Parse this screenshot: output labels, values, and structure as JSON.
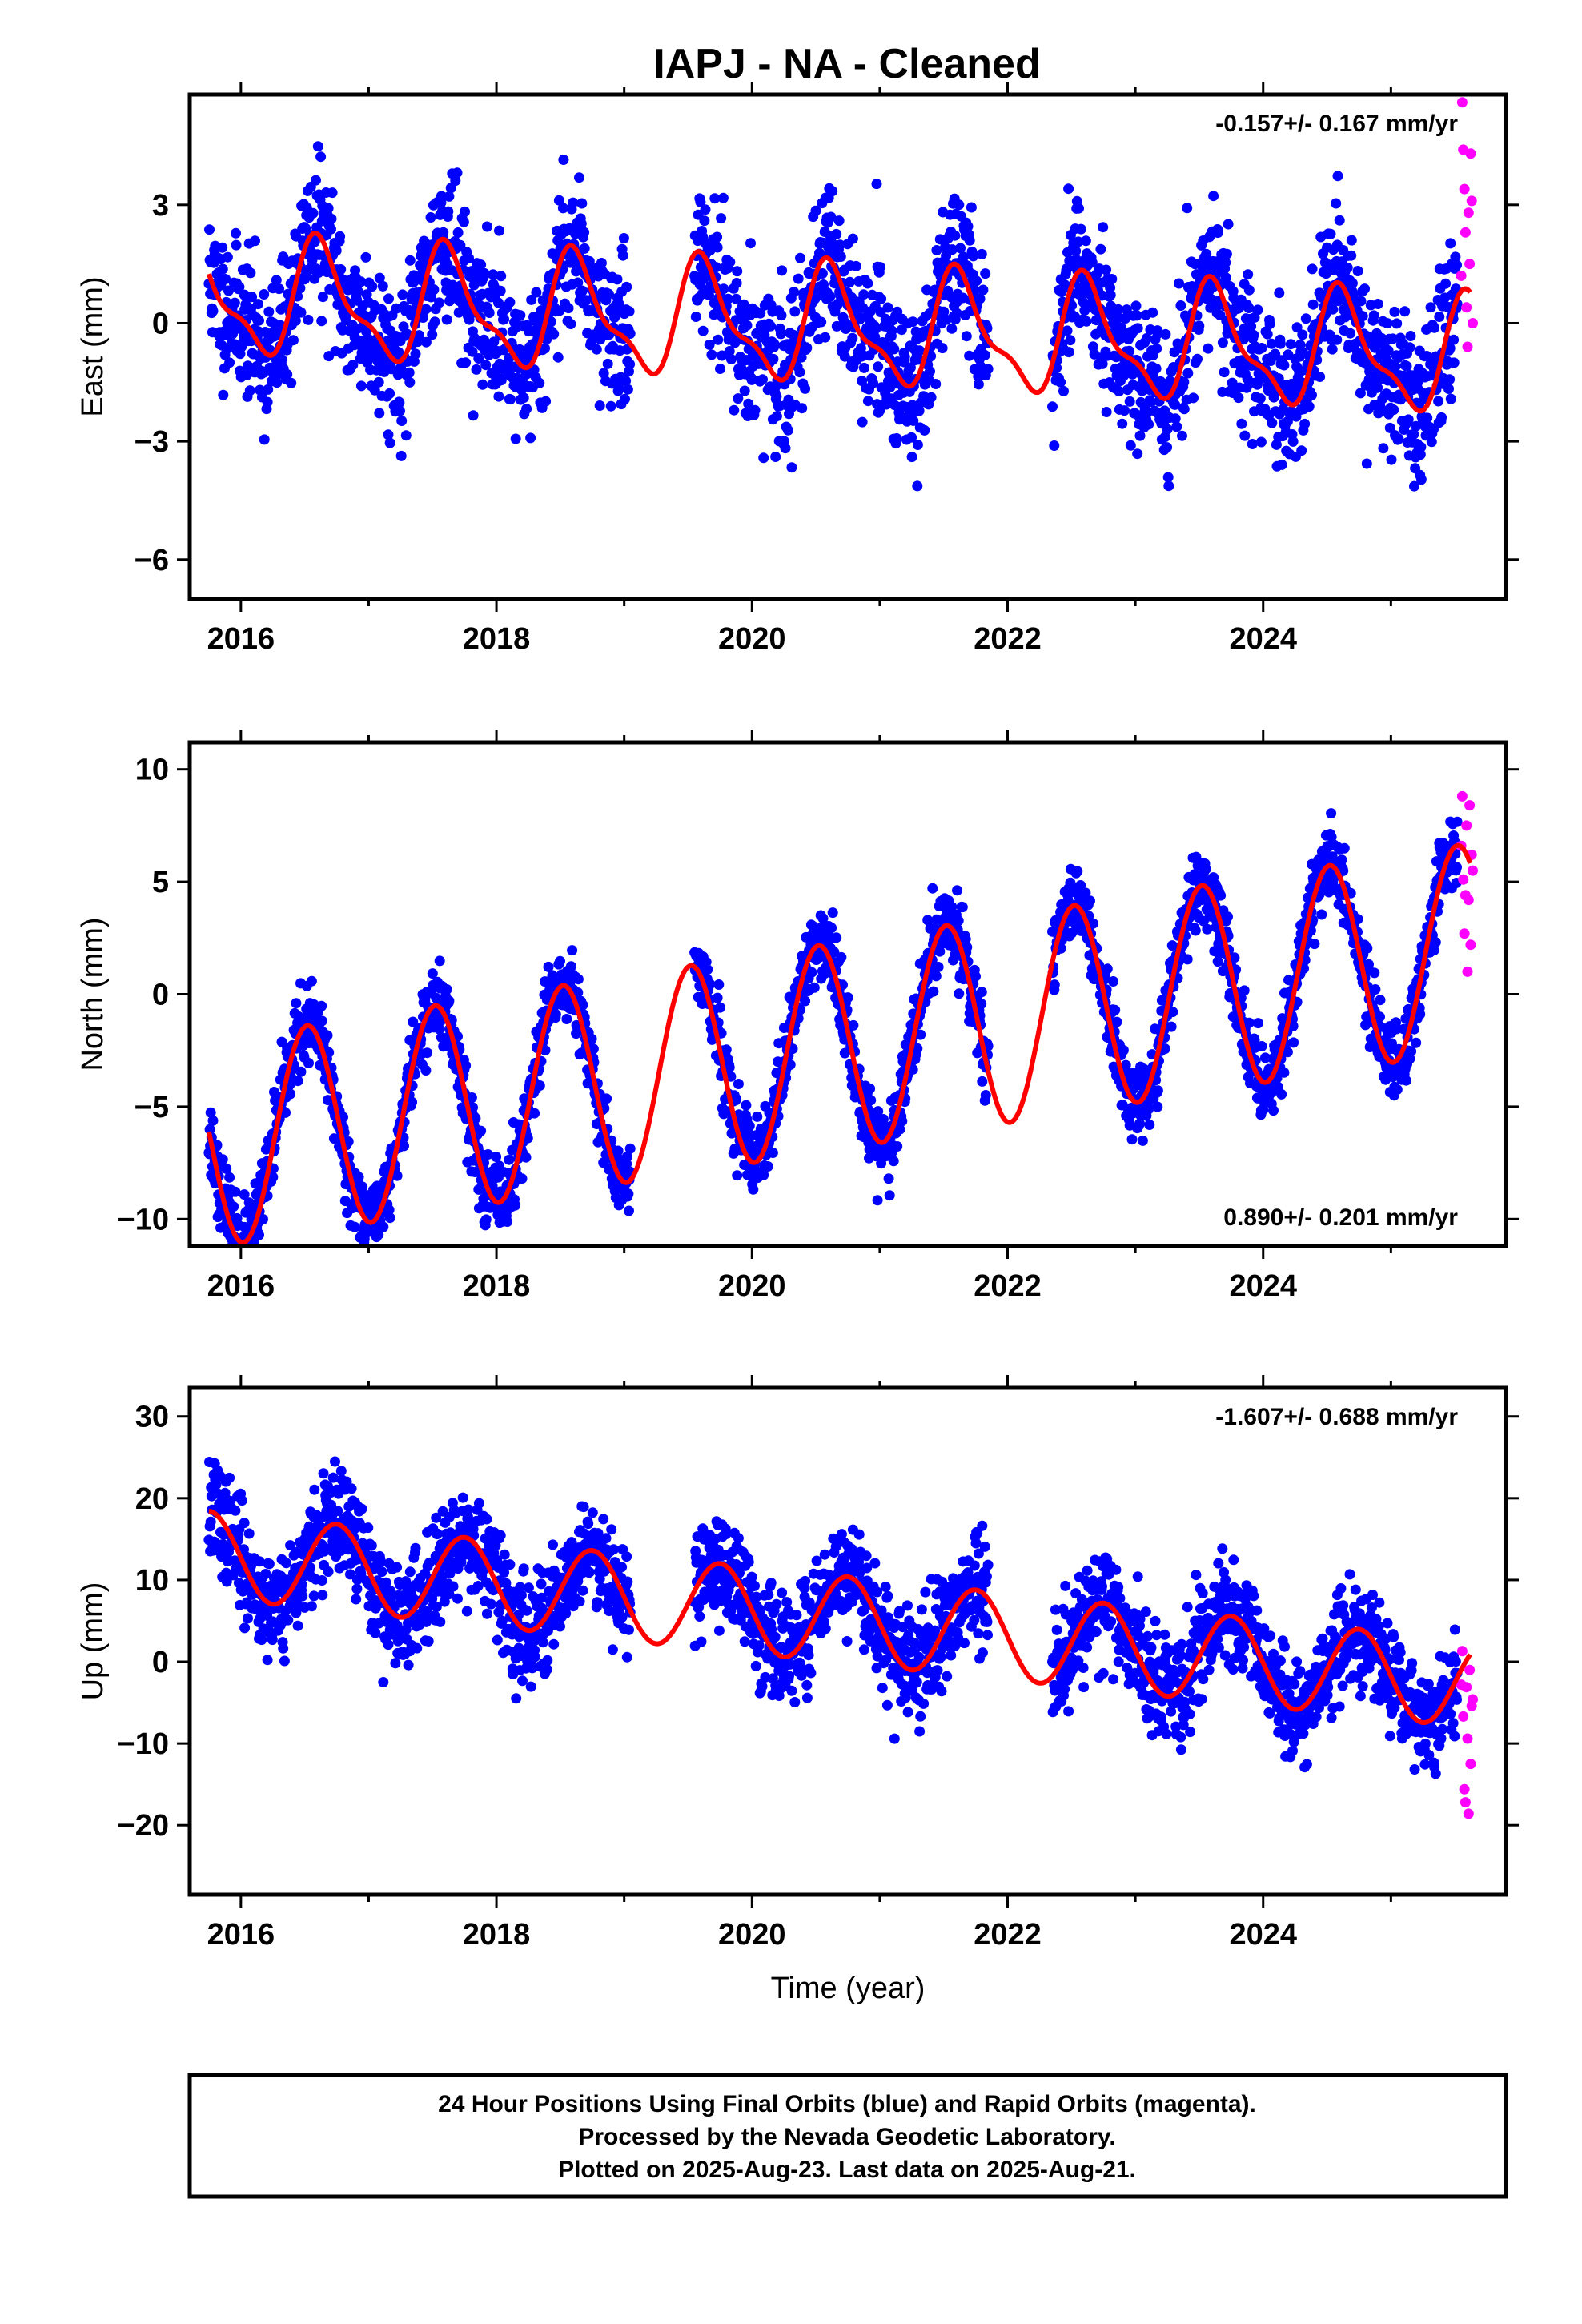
{
  "chart_data": {
    "title": "IAPJ  - NA - Cleaned",
    "type": "scatter",
    "xlabel": "Time (year)",
    "xlim": [
      2015.6,
      2025.9
    ],
    "xticks": [
      2016,
      2018,
      2020,
      2022,
      2024
    ],
    "legend": "bottom box",
    "colors": {
      "final": "#0000ff",
      "rapid": "#ff00ff",
      "model": "#ff0000"
    },
    "panels": [
      {
        "id": "east",
        "ylabel": "East (mm)",
        "ylim": [
          -7.0,
          5.8
        ],
        "yticks": [
          3,
          0,
          -3,
          -6
        ],
        "ytick_labels": [
          "3",
          "0",
          "−3",
          "−6"
        ],
        "rate": "-0.157+/- 0.167 mm/yr",
        "rate_pos": "top-right",
        "velocity": -0.157,
        "offset": 0.0,
        "annual_amp": 1.35,
        "annual_phase": 2016.63,
        "semi_amp": 0.5,
        "semi_phase": 2016.55,
        "noise": 0.9,
        "seed": 11,
        "rapid": [
          1.2,
          5.6,
          4.4,
          3.4,
          2.3,
          0.4,
          -0.6,
          2.8,
          1.5,
          4.3,
          3.1,
          0.0
        ]
      },
      {
        "id": "north",
        "ylabel": "North (mm)",
        "ylim": [
          -11.2,
          11.2
        ],
        "yticks": [
          10,
          5,
          0,
          -5,
          -10
        ],
        "ytick_labels": [
          "10",
          "5",
          "0",
          "−5",
          "−10"
        ],
        "rate": "0.890+/- 0.201 mm/yr",
        "rate_pos": "bottom-right",
        "velocity": 0.89,
        "offset": -2.9,
        "annual_amp": 4.6,
        "annual_phase": 2016.52,
        "semi_amp": 0.0,
        "semi_phase": 2016.3,
        "noise": 0.85,
        "seed": 23,
        "rapid": [
          6.6,
          8.8,
          5.1,
          2.7,
          4.4,
          7.5,
          1.0,
          4.2,
          8.4,
          2.2,
          6.2,
          5.5
        ]
      },
      {
        "id": "up",
        "ylabel": "Up (mm)",
        "ylim": [
          -28.5,
          33.5
        ],
        "yticks": [
          30,
          20,
          10,
          0,
          -10,
          -20
        ],
        "ytick_labels": [
          "30",
          "20",
          "10",
          "0",
          "−10",
          "−20"
        ],
        "rate": "-1.607+/- 0.688 mm/yr",
        "rate_pos": "top-right",
        "velocity": -1.607,
        "offset": 6.3,
        "annual_amp": 5.3,
        "annual_phase": 2016.75,
        "semi_amp": 0.0,
        "semi_phase": 2016.3,
        "noise": 3.2,
        "seed": 37,
        "rapid": [
          -2.8,
          1.3,
          -6.7,
          -15.6,
          -17.2,
          -3.1,
          -9.4,
          -18.6,
          -1.0,
          -12.5,
          -5.4,
          -4.6
        ]
      }
    ],
    "data_gaps": [
      [
        2019.05,
        2019.55
      ],
      [
        2021.85,
        2022.35
      ]
    ],
    "final_range": [
      2015.75,
      2025.52
    ],
    "rapid_range": [
      2025.55,
      2025.64
    ]
  },
  "footer": {
    "line1": "24 Hour Positions Using Final Orbits (blue) and Rapid Orbits (magenta).",
    "line2": "Processed by the Nevada Geodetic Laboratory.",
    "line3": "Plotted on 2025-Aug-23. Last data on 2025-Aug-21."
  }
}
